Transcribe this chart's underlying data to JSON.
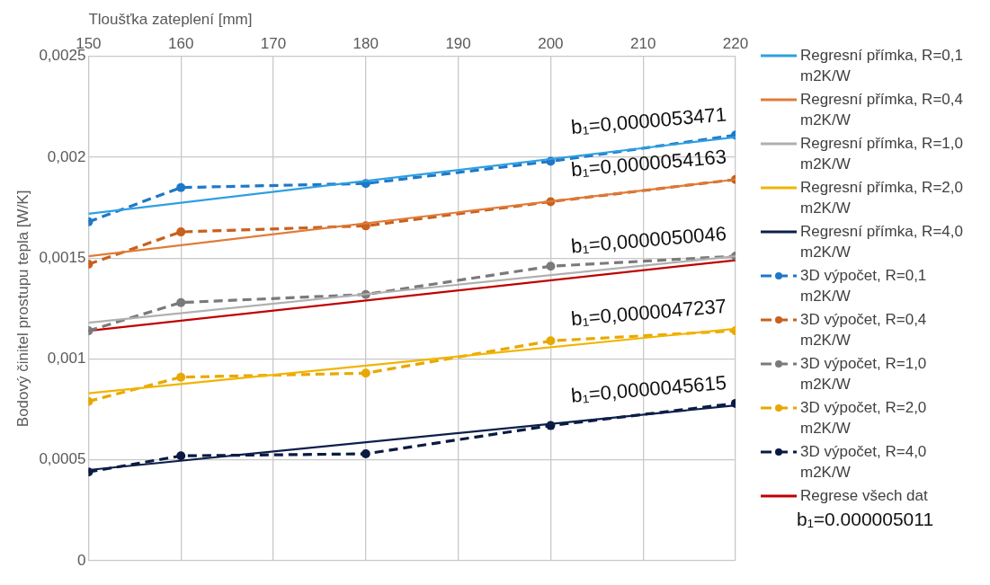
{
  "chart_data": {
    "type": "line",
    "xlabel": "Tloušťka zateplení [mm]",
    "ylabel": "Bodový činitel prostupu tepla [W/K]",
    "xlim": [
      150,
      220
    ],
    "xticks": [
      150,
      160,
      170,
      180,
      190,
      200,
      210,
      220
    ],
    "ylim": [
      0,
      0.0025
    ],
    "yticks": [
      {
        "value": 0,
        "label": "0"
      },
      {
        "value": 0.0005,
        "label": "0,0005"
      },
      {
        "value": 0.001,
        "label": "0,001"
      },
      {
        "value": 0.0015,
        "label": "0,0015"
      },
      {
        "value": 0.002,
        "label": "0,002"
      },
      {
        "value": 0.0025,
        "label": "0,0025"
      }
    ],
    "grid": true,
    "legend": "right",
    "series": [
      {
        "name": "Regresní přímka, R=0,1 m2K/W",
        "color": "#2e9fe0",
        "x": [
          150,
          220
        ],
        "values": [
          0.00172,
          0.0021
        ],
        "marker": "none",
        "line_style": "solid"
      },
      {
        "name": "Regresní přímka, R=0,4 m2K/W",
        "color": "#e07b39",
        "x": [
          150,
          220
        ],
        "values": [
          0.00151,
          0.00189
        ],
        "marker": "none",
        "line_style": "solid"
      },
      {
        "name": "Regresní přímka, R=1,0 m2K/W",
        "color": "#b0b0b0",
        "x": [
          150,
          220
        ],
        "values": [
          0.00118,
          0.00151
        ],
        "marker": "none",
        "line_style": "solid"
      },
      {
        "name": "Regresní přímka, R=2,0 m2K/W",
        "color": "#f2b400",
        "x": [
          150,
          220
        ],
        "values": [
          0.00083,
          0.00115
        ],
        "marker": "none",
        "line_style": "solid"
      },
      {
        "name": "Regresní přímka, R=4,0 m2K/W",
        "color": "#0d1f4a",
        "x": [
          150,
          220
        ],
        "values": [
          0.00045,
          0.00077
        ],
        "marker": "none",
        "line_style": "solid"
      },
      {
        "name": "3D výpočet, R=0,1 m2K/W",
        "color": "#1e78c8",
        "x": [
          150,
          160,
          180,
          200,
          220
        ],
        "values": [
          0.00168,
          0.00185,
          0.00187,
          0.00198,
          0.00211
        ],
        "marker": "circle",
        "line_style": "dashed"
      },
      {
        "name": "3D výpočet, R=0,4 m2K/W",
        "color": "#c8601e",
        "x": [
          150,
          160,
          180,
          200,
          220
        ],
        "values": [
          0.00147,
          0.00163,
          0.00166,
          0.00178,
          0.00189
        ],
        "marker": "circle",
        "line_style": "dashed"
      },
      {
        "name": "3D výpočet, R=1,0 m2K/W",
        "color": "#7a7a7a",
        "x": [
          150,
          160,
          180,
          200,
          220
        ],
        "values": [
          0.00114,
          0.00128,
          0.00132,
          0.00146,
          0.00151
        ],
        "marker": "circle",
        "line_style": "dashed"
      },
      {
        "name": "3D výpočet, R=2,0 m2K/W",
        "color": "#e8a800",
        "x": [
          150,
          160,
          180,
          200,
          220
        ],
        "values": [
          0.00079,
          0.00091,
          0.00093,
          0.00109,
          0.00114
        ],
        "marker": "circle",
        "line_style": "dashed"
      },
      {
        "name": "3D výpočet, R=4,0 m2K/W",
        "color": "#0a1a40",
        "x": [
          150,
          160,
          180,
          200,
          220
        ],
        "values": [
          0.00044,
          0.00052,
          0.00053,
          0.00067,
          0.00078
        ],
        "marker": "circle",
        "line_style": "dashed"
      },
      {
        "name": "Regrese všech dat",
        "color": "#c00000",
        "x": [
          150,
          220
        ],
        "values": [
          0.00114,
          0.00149
        ],
        "marker": "none",
        "line_style": "solid"
      }
    ],
    "annotations": [
      "b₁=0,0000053471",
      "b₁=0,0000054163",
      "b₁=0,0000050046",
      "b₁=0,0000047237",
      "b₁=0,0000045615",
      "b₁=0.000005011"
    ]
  }
}
